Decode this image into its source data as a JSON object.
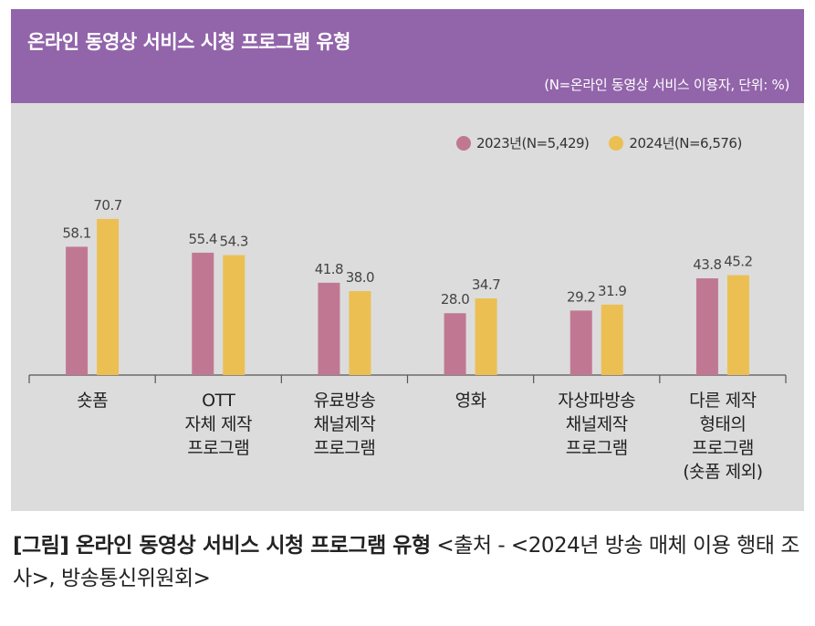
{
  "header": {
    "title": "온라인 동영상 서비스 시청 프로그램 유형",
    "note": "(N=온라인 동영상 서비스 이용자, 단위: %)"
  },
  "legend": [
    {
      "label": "2023년(N=5,429)",
      "color": "#c07892"
    },
    {
      "label": "2024년(N=6,576)",
      "color": "#ebbf52"
    }
  ],
  "chart_data": {
    "type": "bar",
    "categories": [
      [
        "숏폼"
      ],
      [
        "OTT",
        "자체 제작",
        "프로그램"
      ],
      [
        "유료방송",
        "채널제작",
        "프로그램"
      ],
      [
        "영화"
      ],
      [
        "자상파방송",
        "채널제작",
        "프로그램"
      ],
      [
        "다른 제작",
        "형태의",
        "프로그램",
        "(숏폼 제외)"
      ]
    ],
    "series": [
      {
        "name": "2023년(N=5,429)",
        "color": "#c07892",
        "values": [
          58.1,
          55.4,
          41.8,
          28.0,
          29.2,
          43.8
        ],
        "labels": [
          "58.1",
          "55.4",
          "41.8",
          "28.0",
          "29.2",
          "43.8"
        ]
      },
      {
        "name": "2024년(N=6,576)",
        "color": "#ebbf52",
        "values": [
          70.7,
          54.3,
          38.0,
          34.7,
          31.9,
          45.2
        ],
        "labels": [
          "70.7",
          "54.3",
          "38.0",
          "34.7",
          "31.9",
          "45.2"
        ]
      }
    ],
    "ylim": [
      0,
      100
    ],
    "grid": false,
    "legend_position": "top-right"
  },
  "caption": {
    "bold": "[그림] 온라인 동영상 서비스 시청 프로그램 유형",
    "source": " <출처 - <2024년 방송 매체 이용 행태 조사>, 방송통신위원회>"
  }
}
